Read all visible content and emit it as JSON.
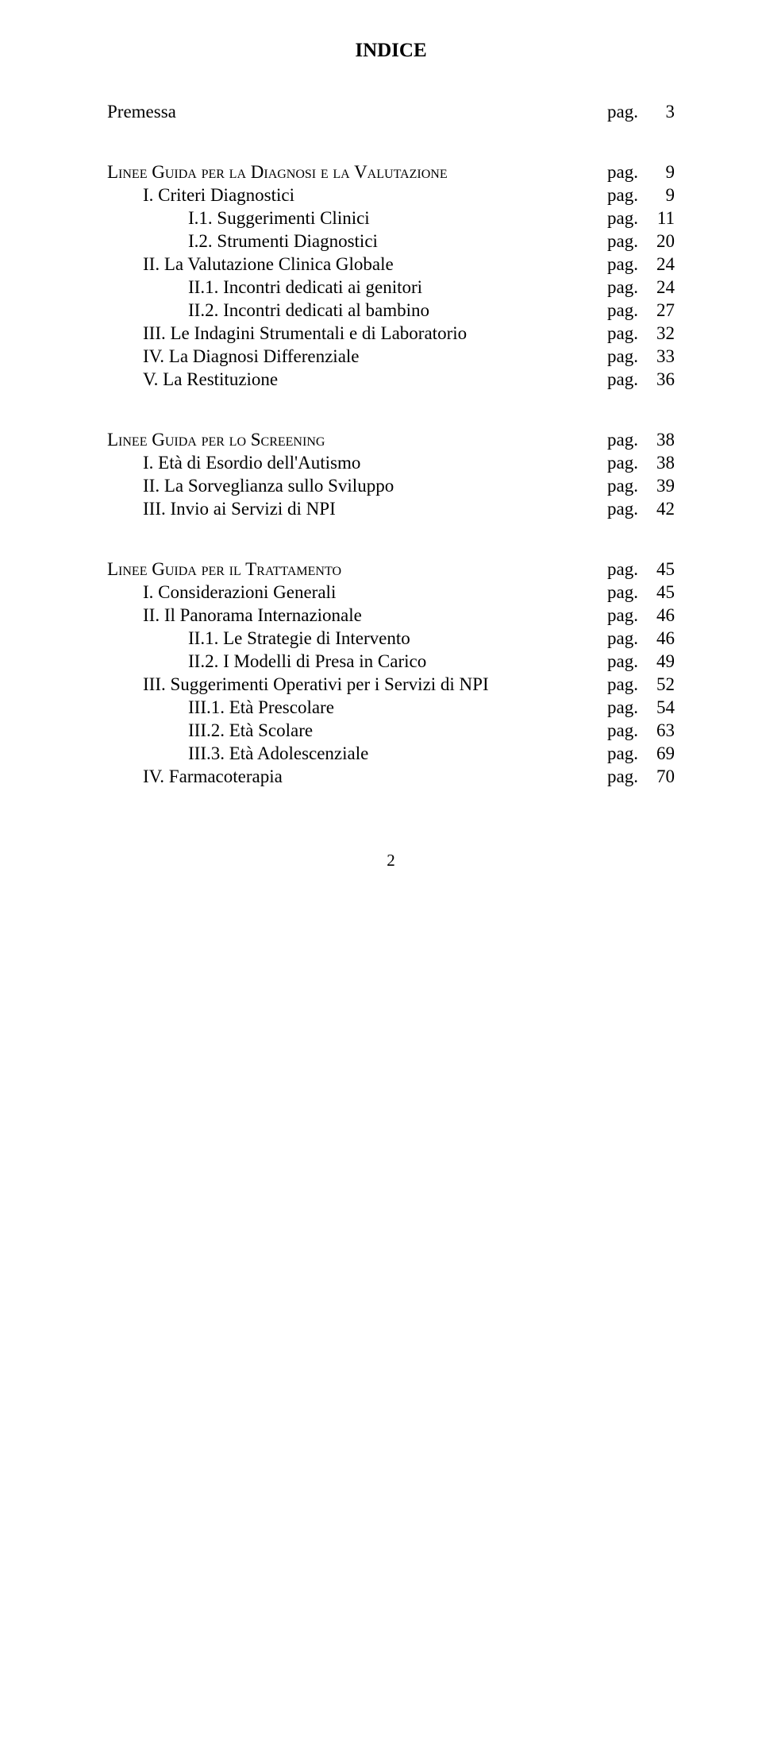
{
  "title": "INDICE",
  "pag_label": "pag.",
  "page_number_footer": "2",
  "sections": [
    {
      "items": [
        {
          "level": 0,
          "heading": false,
          "label": "Premessa",
          "page": "3"
        }
      ]
    },
    {
      "items": [
        {
          "level": 0,
          "heading": true,
          "label": "Linee Guida per la Diagnosi e la Valutazione",
          "page": "9"
        },
        {
          "level": 1,
          "heading": false,
          "label": "I. Criteri Diagnostici",
          "page": "9"
        },
        {
          "level": 2,
          "heading": false,
          "label": "I.1. Suggerimenti Clinici",
          "page": "11"
        },
        {
          "level": 2,
          "heading": false,
          "label": "I.2. Strumenti Diagnostici",
          "page": "20"
        },
        {
          "level": 1,
          "heading": false,
          "label": "II. La Valutazione Clinica Globale",
          "page": "24"
        },
        {
          "level": 2,
          "heading": false,
          "label": "II.1. Incontri dedicati ai genitori",
          "page": "24"
        },
        {
          "level": 2,
          "heading": false,
          "label": "II.2. Incontri dedicati al bambino",
          "page": "27"
        },
        {
          "level": 1,
          "heading": false,
          "label": "III. Le Indagini Strumentali e di Laboratorio",
          "page": "32"
        },
        {
          "level": 1,
          "heading": false,
          "label": "IV. La Diagnosi Differenziale",
          "page": "33"
        },
        {
          "level": 1,
          "heading": false,
          "label": "V. La Restituzione",
          "page": "36"
        }
      ]
    },
    {
      "items": [
        {
          "level": 0,
          "heading": true,
          "label": "Linee Guida per lo Screening",
          "page": "38"
        },
        {
          "level": 1,
          "heading": false,
          "label": "I. Età di Esordio dell'Autismo",
          "page": "38"
        },
        {
          "level": 1,
          "heading": false,
          "label": "II. La Sorveglianza sullo Sviluppo",
          "page": "39"
        },
        {
          "level": 1,
          "heading": false,
          "label": "III. Invio ai Servizi di NPI",
          "page": "42"
        }
      ]
    },
    {
      "items": [
        {
          "level": 0,
          "heading": true,
          "label": "Linee Guida per il Trattamento",
          "page": "45"
        },
        {
          "level": 1,
          "heading": false,
          "label": "I. Considerazioni Generali",
          "page": "45"
        },
        {
          "level": 1,
          "heading": false,
          "label": "II. Il Panorama Internazionale",
          "page": "46"
        },
        {
          "level": 2,
          "heading": false,
          "label": "II.1. Le Strategie di Intervento",
          "page": "46"
        },
        {
          "level": 2,
          "heading": false,
          "label": "II.2. I Modelli di Presa in Carico",
          "page": "49"
        },
        {
          "level": 1,
          "heading": false,
          "label": "III. Suggerimenti Operativi per i Servizi di NPI",
          "page": "52"
        },
        {
          "level": 2,
          "heading": false,
          "label": "III.1. Età Prescolare",
          "page": "54"
        },
        {
          "level": 2,
          "heading": false,
          "label": "III.2. Età Scolare",
          "page": "63"
        },
        {
          "level": 2,
          "heading": false,
          "label": "III.3. Età Adolescenziale",
          "page": "69"
        },
        {
          "level": 1,
          "heading": false,
          "label": "IV. Farmacoterapia",
          "page": "70"
        }
      ]
    }
  ]
}
